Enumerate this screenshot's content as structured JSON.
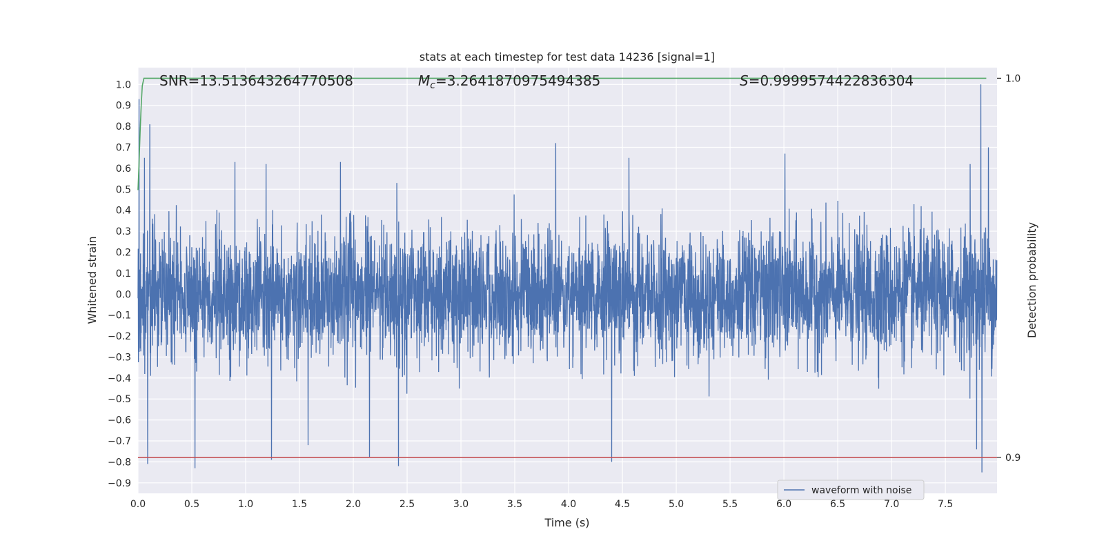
{
  "chart_data": {
    "type": "line",
    "title": "stats at each timestep for test data 14236 [signal=1]",
    "xlabel": "Time (s)",
    "ylabel": "Whitened strain",
    "y2label": "Detection probability",
    "xlim": [
      0.0,
      7.98
    ],
    "ylim": [
      -0.95,
      1.08
    ],
    "y2lim": [
      0.8905,
      1.0028
    ],
    "x_ticks": [
      "0.0",
      "0.5",
      "1.0",
      "1.5",
      "2.0",
      "2.5",
      "3.0",
      "3.5",
      "4.0",
      "4.5",
      "5.0",
      "5.5",
      "6.0",
      "6.5",
      "7.0",
      "7.5"
    ],
    "y_ticks": [
      "1.0",
      "0.9",
      "0.8",
      "0.7",
      "0.6",
      "0.5",
      "0.4",
      "0.3",
      "0.2",
      "0.1",
      "0.0",
      "−0.1",
      "−0.2",
      "−0.3",
      "−0.4",
      "−0.5",
      "−0.6",
      "−0.7",
      "−0.8",
      "−0.9"
    ],
    "y2_ticks": [
      "1.0",
      "0.9"
    ],
    "grid": true,
    "legend_position": "lower-right",
    "annotations": {
      "snr": "SNR=13.513643264770508",
      "mc_symbol": "M",
      "mc_sub": "c",
      "mc_value": "=3.2641870975494385",
      "s_symbol": "S",
      "s_value": "=0.9999574422836304"
    },
    "series": [
      {
        "name": "waveform with noise",
        "axis": "left",
        "color": "#4c72b0",
        "sample_rate": 2048,
        "duration": 7.98,
        "noise_std": 0.15,
        "peaks": [
          {
            "x": 0.01,
            "y": 0.93
          },
          {
            "x": 0.11,
            "y": 0.81
          },
          {
            "x": 0.09,
            "y": -0.81
          },
          {
            "x": 0.53,
            "y": -0.83
          },
          {
            "x": 0.06,
            "y": 0.65
          },
          {
            "x": 0.9,
            "y": 0.63
          },
          {
            "x": 1.19,
            "y": 0.62
          },
          {
            "x": 1.24,
            "y": -0.79
          },
          {
            "x": 1.58,
            "y": -0.72
          },
          {
            "x": 1.88,
            "y": 0.63
          },
          {
            "x": 2.15,
            "y": -0.78
          },
          {
            "x": 2.42,
            "y": -0.82
          },
          {
            "x": 3.88,
            "y": 0.72
          },
          {
            "x": 4.4,
            "y": -0.8
          },
          {
            "x": 4.56,
            "y": 0.65
          },
          {
            "x": 6.01,
            "y": 0.67
          },
          {
            "x": 7.83,
            "y": 1.0
          },
          {
            "x": 7.84,
            "y": -0.85
          },
          {
            "x": 7.9,
            "y": 0.7
          },
          {
            "x": 7.73,
            "y": 0.62
          },
          {
            "x": 7.79,
            "y": -0.74
          }
        ]
      },
      {
        "name": "",
        "axis": "right",
        "color": "#55a868",
        "x": [
          0.0,
          0.01,
          0.02,
          0.03,
          0.04,
          0.055,
          7.88
        ],
        "y": [
          0.9705,
          0.978,
          0.986,
          0.993,
          0.998,
          1.0,
          1.0
        ]
      },
      {
        "name": "",
        "axis": "right",
        "color": "#c44e52",
        "x": [
          0.0,
          7.98
        ],
        "y": [
          0.9,
          0.9
        ]
      }
    ]
  }
}
